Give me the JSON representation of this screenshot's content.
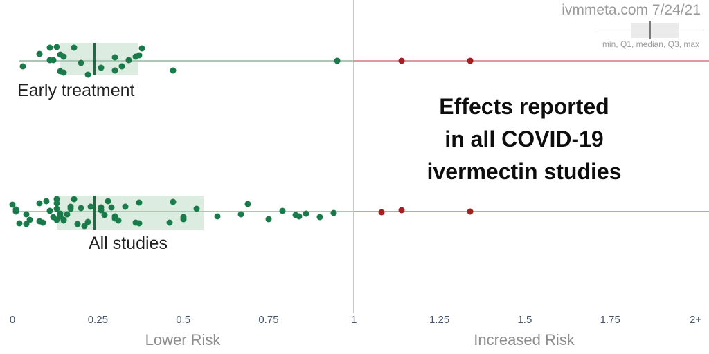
{
  "header": {
    "source": "ivmmeta.com 7/24/21",
    "legend_caption": "min, Q1, median, Q3, max"
  },
  "title": {
    "line1": "Effects reported",
    "line2": "in all COVID-19",
    "line3": "ivermectin studies"
  },
  "axis": {
    "ticks": [
      {
        "label": "0",
        "value": 0
      },
      {
        "label": "0.25",
        "value": 0.25
      },
      {
        "label": "0.5",
        "value": 0.5
      },
      {
        "label": "0.75",
        "value": 0.75
      },
      {
        "label": "1",
        "value": 1
      },
      {
        "label": "1.25",
        "value": 1.25
      },
      {
        "label": "1.5",
        "value": 1.5
      },
      {
        "label": "1.75",
        "value": 1.75
      },
      {
        "label": "2+",
        "value": 2
      }
    ],
    "left_label": "Lower Risk",
    "right_label": "Increased Risk",
    "reference_value": 1
  },
  "colors": {
    "improved_dot": "#1a7a4a",
    "worse_dot": "#a51f1f",
    "improved_line": "#a6cbb4",
    "worse_line": "#dd9a9a",
    "box_fill": "#dcece1",
    "median_line": "#176e41",
    "reference_line": "#c7c7c7"
  },
  "chart_data": {
    "type": "scatter-box",
    "x_axis": {
      "min": 0,
      "max": 2,
      "unit": "relative risk",
      "reference": 1
    },
    "rows": [
      {
        "label": "Early treatment",
        "box": {
          "min": 0.02,
          "q1": 0.14,
          "median": 0.24,
          "q3": 0.37,
          "max": "2+"
        },
        "whisker_start": 0.02,
        "points_lower": [
          [
            0.03,
            8
          ],
          [
            0.08,
            -10
          ],
          [
            0.11,
            -19
          ],
          [
            0.11,
            -1
          ],
          [
            0.12,
            -1
          ],
          [
            0.13,
            -20
          ],
          [
            0.14,
            -9
          ],
          [
            0.15,
            -6
          ],
          [
            0.14,
            15
          ],
          [
            0.15,
            17
          ],
          [
            0.18,
            -19
          ],
          [
            0.2,
            3
          ],
          [
            0.22,
            20
          ],
          [
            0.26,
            10
          ],
          [
            0.3,
            -5
          ],
          [
            0.3,
            14
          ],
          [
            0.32,
            8
          ],
          [
            0.34,
            -1
          ],
          [
            0.36,
            -6
          ],
          [
            0.37,
            -8
          ],
          [
            0.38,
            -18
          ],
          [
            0.47,
            14
          ],
          [
            0.95,
            0
          ]
        ],
        "points_higher": [
          [
            1.14,
            0
          ],
          [
            1.34,
            0
          ]
        ]
      },
      {
        "label": "All studies",
        "box": {
          "min": 0.0,
          "q1": 0.13,
          "median": 0.24,
          "q3": 0.56,
          "max": "2+"
        },
        "whisker_start": 0.004,
        "points_lower": [
          [
            0.0,
            -10
          ],
          [
            0.01,
            -3
          ],
          [
            0.01,
            0
          ],
          [
            0.02,
            17
          ],
          [
            0.04,
            4
          ],
          [
            0.04,
            18
          ],
          [
            0.05,
            12
          ],
          [
            0.08,
            -12
          ],
          [
            0.08,
            14
          ],
          [
            0.09,
            16
          ],
          [
            0.1,
            -15
          ],
          [
            0.11,
            -1
          ],
          [
            0.13,
            -18
          ],
          [
            0.13,
            -4
          ],
          [
            0.13,
            -12
          ],
          [
            0.12,
            8
          ],
          [
            0.13,
            12
          ],
          [
            0.14,
            3
          ],
          [
            0.14,
            7
          ],
          [
            0.15,
            12
          ],
          [
            0.15,
            13
          ],
          [
            0.16,
            4
          ],
          [
            0.17,
            -4
          ],
          [
            0.17,
            -7
          ],
          [
            0.18,
            -18
          ],
          [
            0.19,
            18
          ],
          [
            0.2,
            -5
          ],
          [
            0.21,
            21
          ],
          [
            0.22,
            15
          ],
          [
            0.23,
            -7
          ],
          [
            0.26,
            -2
          ],
          [
            0.26,
            -6
          ],
          [
            0.27,
            5
          ],
          [
            0.28,
            -15
          ],
          [
            0.29,
            -6
          ],
          [
            0.3,
            7
          ],
          [
            0.3,
            10
          ],
          [
            0.31,
            13
          ],
          [
            0.33,
            -7
          ],
          [
            0.36,
            16
          ],
          [
            0.37,
            -13
          ],
          [
            0.37,
            17
          ],
          [
            0.46,
            16
          ],
          [
            0.47,
            -14
          ],
          [
            0.5,
            8
          ],
          [
            0.5,
            11
          ],
          [
            0.54,
            -4
          ],
          [
            0.6,
            7
          ],
          [
            0.67,
            4
          ],
          [
            0.69,
            -11
          ],
          [
            0.75,
            11
          ],
          [
            0.79,
            -1
          ],
          [
            0.83,
            5
          ],
          [
            0.84,
            7
          ],
          [
            0.86,
            3
          ],
          [
            0.9,
            8
          ],
          [
            0.94,
            2
          ]
        ],
        "points_higher": [
          [
            1.08,
            1
          ],
          [
            1.14,
            -2
          ],
          [
            1.34,
            0
          ]
        ]
      }
    ]
  }
}
